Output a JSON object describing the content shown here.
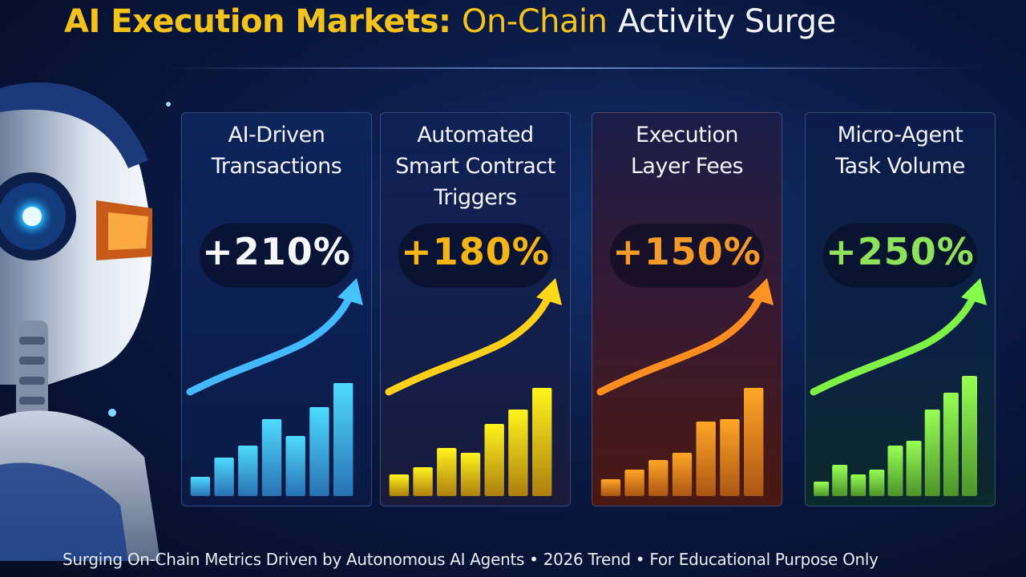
{
  "title": {
    "part1": "AI Execution Markets:",
    "part2": "On-Chain",
    "part3": "Activity Surge"
  },
  "footer": "Surging On-Chain Metrics Driven by Autonomous AI Agents • 2026 Trend • For Educational Purpose Only",
  "colors": {
    "title_accent": "#f5c21b",
    "blue": "#3aa2ff",
    "yellow": "#f7b515",
    "orange": "#f37b1c",
    "green": "#6fd23e"
  },
  "chart_data": [
    {
      "type": "bar",
      "label": "AI-Driven\nTransactions",
      "growth": "+210%",
      "color": "#3aa2ff",
      "values": [
        16,
        32,
        42,
        64,
        50,
        74,
        94
      ],
      "ylim": [
        0,
        100
      ]
    },
    {
      "type": "bar",
      "label": "Automated\nSmart Contract\nTriggers",
      "growth": "+180%",
      "color": "#f7b515",
      "values": [
        18,
        24,
        40,
        36,
        60,
        72,
        90
      ],
      "ylim": [
        0,
        100
      ]
    },
    {
      "type": "bar",
      "label": "Execution\nLayer Fees",
      "growth": "+150%",
      "color": "#f37b1c",
      "values": [
        14,
        22,
        30,
        36,
        62,
        64,
        90
      ],
      "ylim": [
        0,
        100
      ]
    },
    {
      "type": "bar",
      "label": "Micro-Agent\nTask Volume",
      "growth": "+250%",
      "color": "#6fd23e",
      "values": [
        12,
        26,
        18,
        22,
        42,
        46,
        72,
        86,
        100
      ],
      "ylim": [
        0,
        100
      ]
    }
  ]
}
